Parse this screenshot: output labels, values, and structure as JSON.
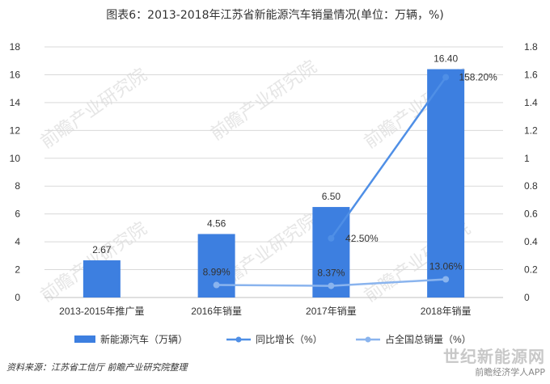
{
  "title": "图表6：2013-2018年江苏省新能源汽车销量情况(单位：万辆，%)",
  "source": "资料来源：江苏省工信厅 前瞻产业研究院整理",
  "watermark": "前瞻产业研究院",
  "footer": {
    "site": "世纪新能源网",
    "app": "前瞻经济学人APP"
  },
  "colors": {
    "bar": "#3d7fe0",
    "growth_line": "#4f8fe6",
    "share_line": "#8ab4ee",
    "grid": "#d9d9d9"
  },
  "chart_data": {
    "type": "bar",
    "categories": [
      "2013-2015年推广量",
      "2016年销量",
      "2017年销量",
      "2018年销量"
    ],
    "series": [
      {
        "name": "新能源汽车（万辆）",
        "type": "bar",
        "axis": "left",
        "values": [
          2.67,
          4.56,
          6.5,
          16.4
        ],
        "labels": [
          "2.67",
          "4.56",
          "6.50",
          "16.40"
        ]
      },
      {
        "name": "同比增长（%）",
        "type": "line",
        "axis": "right",
        "values": [
          null,
          null,
          0.425,
          1.582
        ],
        "labels": [
          null,
          null,
          "42.50%",
          "158.20%"
        ]
      },
      {
        "name": "占全国总销量（%）",
        "type": "line",
        "axis": "right",
        "values": [
          null,
          0.0899,
          0.0837,
          0.1306
        ],
        "labels": [
          null,
          "8.99%",
          "8.37%",
          "13.06%"
        ]
      }
    ],
    "y_left": {
      "min": 0,
      "max": 18,
      "ticks": [
        "0",
        "2",
        "4",
        "6",
        "8",
        "10",
        "12",
        "14",
        "16",
        "18"
      ]
    },
    "y_right": {
      "min": 0,
      "max": 1.8,
      "ticks": [
        "0",
        "0.2",
        "0.4",
        "0.6",
        "0.8",
        "1",
        "1.2",
        "1.4",
        "1.6",
        "1.8"
      ]
    },
    "grid": true,
    "legend": "bottom"
  }
}
